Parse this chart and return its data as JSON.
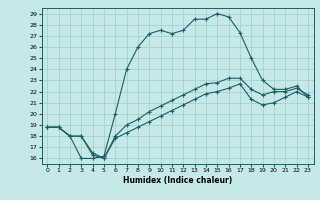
{
  "xlabel": "Humidex (Indice chaleur)",
  "xlim": [
    -0.5,
    23.5
  ],
  "ylim": [
    15.5,
    29.5
  ],
  "xticks": [
    0,
    1,
    2,
    3,
    4,
    5,
    6,
    7,
    8,
    9,
    10,
    11,
    12,
    13,
    14,
    15,
    16,
    17,
    18,
    19,
    20,
    21,
    22,
    23
  ],
  "yticks": [
    16,
    17,
    18,
    19,
    20,
    21,
    22,
    23,
    24,
    25,
    26,
    27,
    28,
    29
  ],
  "bg_color": "#c5e8e8",
  "line_color": "#1a6060",
  "grid_color": "#a0cccc",
  "line1_x": [
    0,
    1,
    2,
    3,
    4,
    5,
    6,
    7,
    8,
    9,
    10,
    11,
    12,
    13,
    14,
    15,
    16,
    17,
    18,
    19,
    20,
    21,
    22,
    23
  ],
  "line1_y": [
    18.8,
    18.8,
    18.0,
    16.0,
    16.0,
    16.2,
    20.0,
    24.0,
    26.0,
    27.2,
    27.5,
    27.2,
    27.5,
    28.5,
    28.5,
    29.0,
    28.7,
    27.3,
    25.0,
    23.0,
    22.2,
    22.2,
    22.5,
    21.5
  ],
  "line2_x": [
    0,
    1,
    2,
    3,
    4,
    5,
    6,
    7,
    8,
    9,
    10,
    11,
    12,
    13,
    14,
    15,
    16,
    17,
    18,
    19,
    20,
    21,
    22,
    23
  ],
  "line2_y": [
    18.8,
    18.8,
    18.0,
    18.0,
    16.3,
    16.0,
    18.0,
    19.0,
    19.5,
    20.2,
    20.7,
    21.2,
    21.7,
    22.2,
    22.7,
    22.8,
    23.2,
    23.2,
    22.2,
    21.7,
    22.0,
    22.0,
    22.3,
    21.7
  ],
  "line3_x": [
    0,
    1,
    2,
    3,
    4,
    5,
    6,
    7,
    8,
    9,
    10,
    11,
    12,
    13,
    14,
    15,
    16,
    17,
    18,
    19,
    20,
    21,
    22,
    23
  ],
  "line3_y": [
    18.8,
    18.8,
    18.0,
    18.0,
    16.5,
    16.0,
    17.8,
    18.3,
    18.8,
    19.3,
    19.8,
    20.3,
    20.8,
    21.3,
    21.8,
    22.0,
    22.3,
    22.7,
    21.3,
    20.8,
    21.0,
    21.5,
    22.0,
    21.5
  ]
}
